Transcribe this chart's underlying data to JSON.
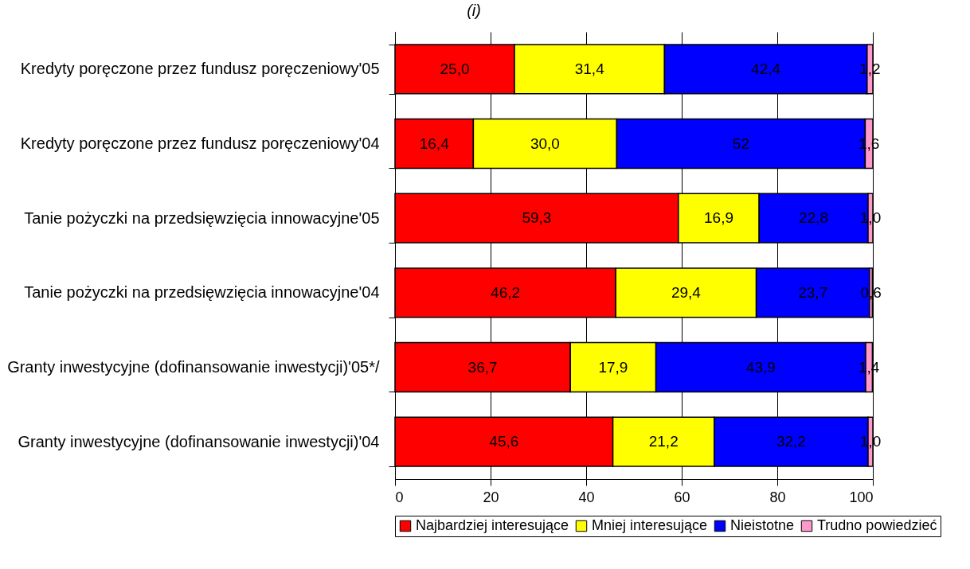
{
  "chart_data": {
    "type": "bar",
    "orientation": "horizontal",
    "stacked": true,
    "subtitle": "(i)",
    "categories": [
      "Kredyty poręczone przez fundusz poręczeniowy'05",
      "Kredyty poręczone przez fundusz poręczeniowy'04",
      "Tanie pożyczki na przedsięwzięcia innowacyjne'05",
      "Tanie pożyczki na przedsięwzięcia innowacyjne'04",
      "Granty inwestycyjne (dofinansowanie inwestycji)'05*/",
      "Granty inwestycyjne (dofinansowanie inwestycji)'04"
    ],
    "series": [
      {
        "name": "Najbardziej interesujące",
        "color": "#ff0000",
        "values": [
          25.0,
          16.4,
          59.3,
          46.2,
          36.7,
          45.6
        ],
        "value_labels": [
          "25,0",
          "16,4",
          "59,3",
          "46,2",
          "36,7",
          "45,6"
        ]
      },
      {
        "name": "Mniej interesujące",
        "color": "#ffff00",
        "values": [
          31.4,
          30.0,
          16.9,
          29.4,
          17.9,
          21.2
        ],
        "value_labels": [
          "31,4",
          "30,0",
          "16,9",
          "29,4",
          "17,9",
          "21,2"
        ]
      },
      {
        "name": "Nieistotne",
        "color": "#0000ff",
        "values": [
          42.4,
          52,
          22.8,
          23.7,
          43.9,
          32.2
        ],
        "value_labels": [
          "42,4",
          "52",
          "22,8",
          "23,7",
          "43,9",
          "32,2"
        ]
      },
      {
        "name": "Trudno powiedzieć",
        "color": "#ff99cc",
        "values": [
          1.2,
          1.6,
          1.0,
          0.6,
          1.4,
          1.0
        ],
        "value_labels": [
          "1,2",
          "1,6",
          "1,0",
          "0,6",
          "1,4",
          "1,0"
        ]
      }
    ],
    "xlim": [
      0,
      100
    ],
    "xticks": [
      0,
      20,
      40,
      60,
      80,
      100
    ],
    "grid": "x",
    "legend": "bottom"
  }
}
